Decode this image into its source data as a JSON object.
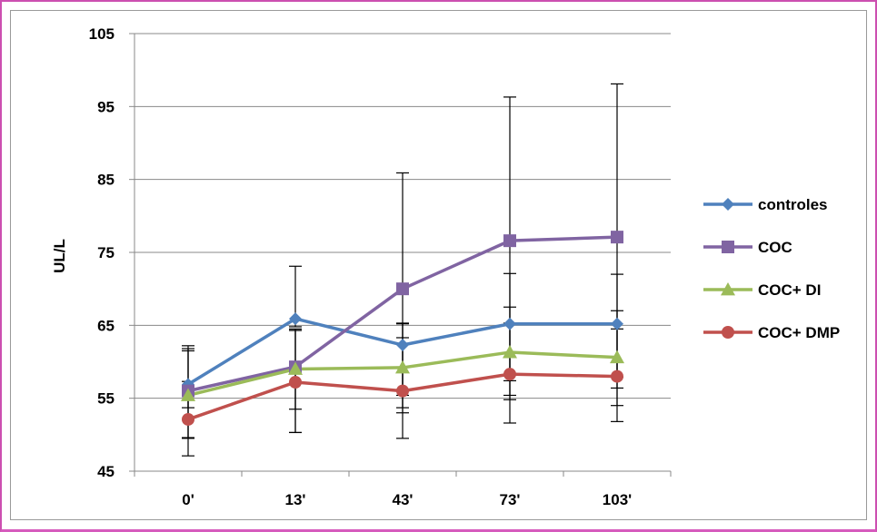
{
  "chart_data": {
    "type": "line",
    "title": "",
    "xlabel": "",
    "ylabel": "UL/L",
    "ylim": [
      45,
      105
    ],
    "yticks": [
      45,
      55,
      65,
      75,
      85,
      95,
      105
    ],
    "grid": "horizontal",
    "legend_position": "right",
    "categories": [
      "0'",
      "13'",
      "43'",
      "73'",
      "103'"
    ],
    "series": [
      {
        "name": "controles",
        "color": "#4f81bd",
        "marker": "diamond",
        "values": [
          56.9,
          65.9,
          62.3,
          65.2,
          65.2
        ],
        "error_low": [
          49.6,
          64.8,
          55.4,
          55.4,
          57.9
        ],
        "error_high": [
          61.8,
          73.1,
          65.2,
          72.1,
          72.0
        ]
      },
      {
        "name": "COC",
        "color": "#8064a2",
        "marker": "square",
        "values": [
          56.0,
          59.3,
          70.0,
          76.6,
          77.1
        ],
        "error_low": [
          53.7,
          53.5,
          53.7,
          57.4,
          56.4
        ],
        "error_high": [
          61.5,
          64.5,
          85.9,
          96.3,
          98.1
        ]
      },
      {
        "name": "COC+ DI",
        "color": "#9bbb59",
        "marker": "triangle",
        "values": [
          55.4,
          59.0,
          59.2,
          61.3,
          60.6
        ],
        "error_low": [
          49.5,
          50.3,
          53.0,
          54.8,
          54.0
        ],
        "error_high": [
          62.2,
          64.3,
          65.3,
          67.5,
          67.0
        ]
      },
      {
        "name": "COC+ DMP",
        "color": "#c0504d",
        "marker": "circle",
        "values": [
          52.1,
          57.2,
          56.0,
          58.3,
          58.0
        ],
        "error_low": [
          47.1,
          50.3,
          49.5,
          51.6,
          51.8
        ],
        "error_high": [
          57.3,
          64.3,
          63.3,
          65.3,
          64.5
        ]
      }
    ]
  }
}
